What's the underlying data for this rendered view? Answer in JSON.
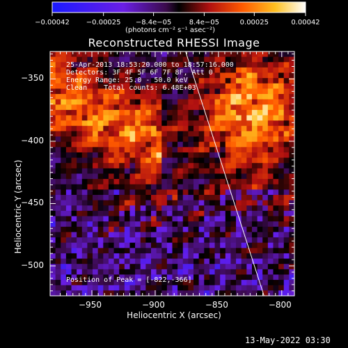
{
  "colorbar": {
    "ticks": [
      "-0.00042",
      "-0.00025",
      "-8.4e-05",
      "8.4e-05",
      "0.00025",
      "0.00042"
    ],
    "unit": "(photons cm⁻² s⁻¹ asec⁻²)",
    "vmin": -0.00042,
    "vmax": 0.00042
  },
  "chart_data": {
    "type": "heatmap",
    "title": "Reconstructed RHESSI Image",
    "xlabel": "Heliocentric X (arcsec)",
    "ylabel": "Heliocentric Y (arcsec)",
    "xlim": [
      -983,
      -790
    ],
    "ylim": [
      -524,
      -328
    ],
    "x_ticks": [
      -950,
      -900,
      -850,
      -800
    ],
    "y_ticks": [
      -350,
      -400,
      -450,
      -500
    ],
    "x_tick_labels": [
      "−950",
      "−900",
      "−850",
      "−800"
    ],
    "y_tick_labels": [
      "−350",
      "−400",
      "−450",
      "−500"
    ],
    "limb_line": {
      "x": [
        -876,
        -814
      ],
      "y": [
        -328,
        -524
      ]
    },
    "peak": {
      "x": -822,
      "y": -366
    },
    "annotations": {
      "time": "25-Apr-2013 18:53:20.000 to 18:57:16.000",
      "detectors": "Detectors: 3F 4F 5F 6F 7F 8F, Att 0",
      "energy": "Energy Range: 25.0 - 50.0 keV",
      "clean": "Clean    Total counts: 6.48E+03",
      "peak_text": "Position of Peak = [-822,-366]"
    }
  },
  "footer": {
    "timestamp": "13-May-2022 03:30"
  }
}
